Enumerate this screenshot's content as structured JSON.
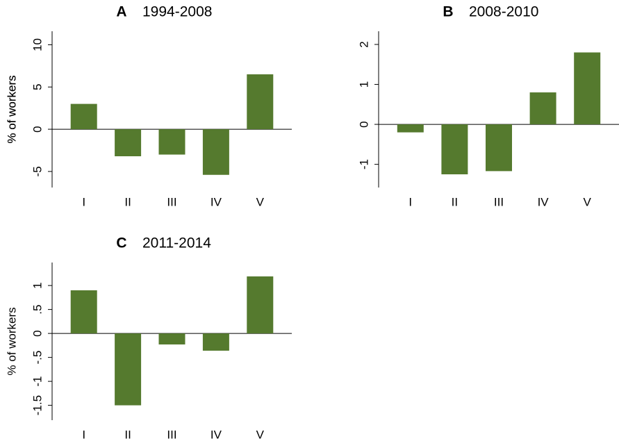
{
  "chart_data": [
    {
      "type": "bar",
      "panel": "A",
      "title": "1994-2008",
      "y_label": "% of workers",
      "categories": [
        "I",
        "II",
        "III",
        "IV",
        "V"
      ],
      "values": [
        3.0,
        -3.2,
        -3.0,
        -5.4,
        6.5
      ],
      "color": "#557a2e",
      "ylim": [
        -6.9,
        11.6
      ],
      "yticks": [
        -5,
        0,
        5,
        10
      ]
    },
    {
      "type": "bar",
      "panel": "B",
      "title": "2008-2010",
      "y_label": "% of workers",
      "categories": [
        "I",
        "II",
        "III",
        "IV",
        "V"
      ],
      "values": [
        -0.2,
        -1.25,
        -1.17,
        0.8,
        1.8
      ],
      "color": "#557a2e",
      "ylim": [
        -1.58,
        2.33
      ],
      "yticks": [
        -1,
        0,
        1,
        2
      ]
    },
    {
      "type": "bar",
      "panel": "C",
      "title": "2011-2014",
      "y_label": "% of workers",
      "categories": [
        "I",
        "II",
        "III",
        "IV",
        "V"
      ],
      "values": [
        0.9,
        -1.5,
        -0.23,
        -0.36,
        1.19
      ],
      "color": "#557a2e",
      "ylim": [
        -1.81,
        1.48
      ],
      "yticks": [
        {
          "value": -1.5,
          "label": "-1.5"
        },
        -1,
        {
          "value": -0.5,
          "label": "-.5"
        },
        0,
        {
          "value": 0.5,
          "label": ".5"
        },
        1
      ]
    }
  ]
}
